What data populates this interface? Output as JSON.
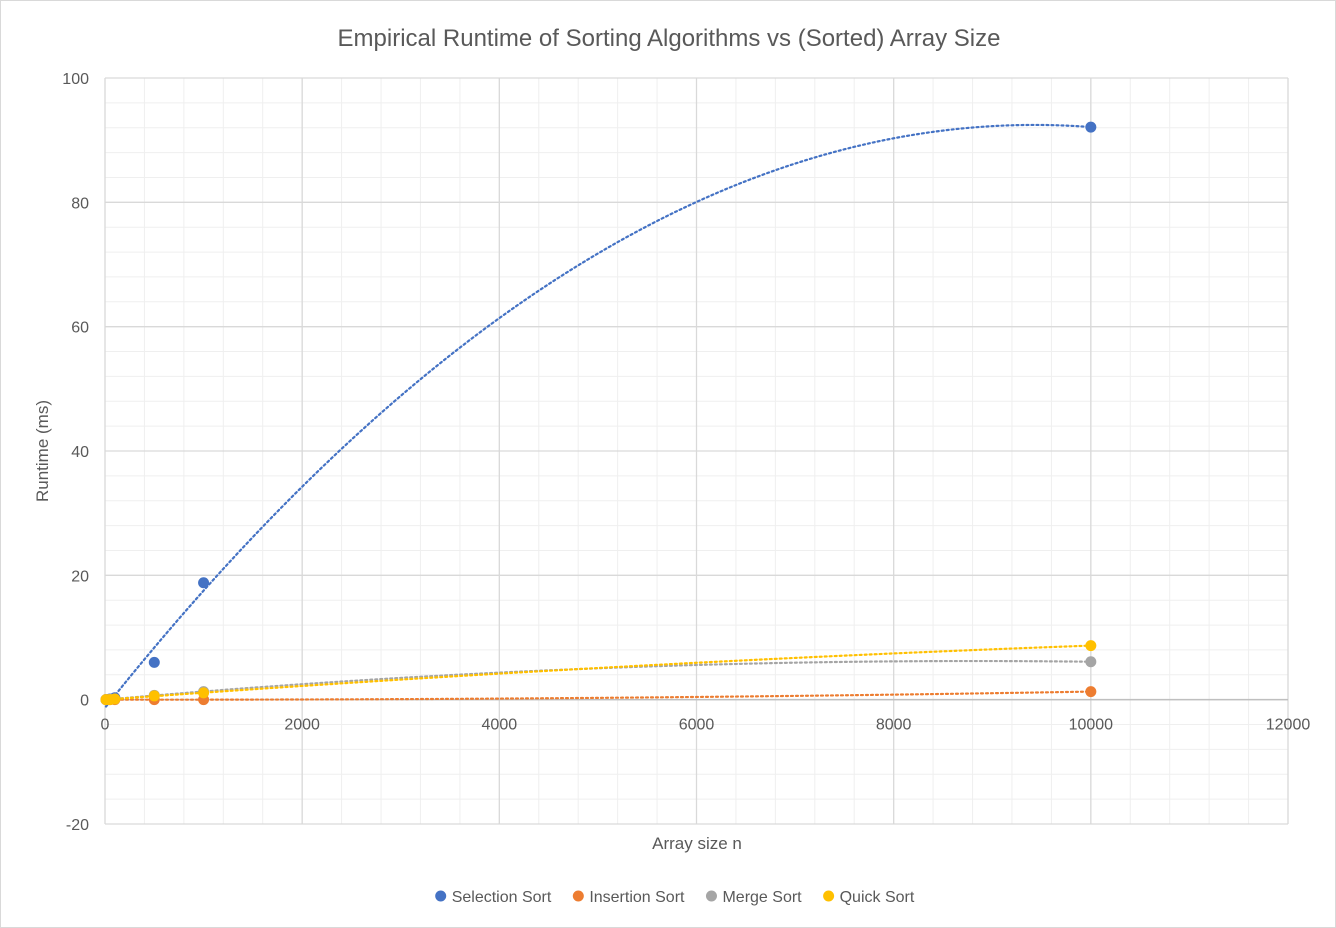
{
  "chart_data": {
    "type": "scatter",
    "title": "Empirical Runtime of Sorting Algorithms vs (Sorted) Array Size",
    "xlabel": "Array size n",
    "ylabel": "Runtime (ms)",
    "xlim": [
      0,
      12000
    ],
    "ylim": [
      -20,
      100
    ],
    "x_ticks": [
      0,
      2000,
      4000,
      6000,
      8000,
      10000,
      12000
    ],
    "y_ticks": [
      -20,
      0,
      20,
      40,
      60,
      80,
      100
    ],
    "x_tick_labels": [
      "0",
      "2000",
      "4000",
      "6000",
      "8000",
      "10000",
      "12000"
    ],
    "y_tick_labels": [
      "-20",
      "0",
      "20",
      "40",
      "60",
      "80",
      "100"
    ],
    "grid": "major and minor",
    "legend_position": "bottom",
    "trendline": "polynomial order 2 (dotted)",
    "series": [
      {
        "name": "Selection Sort",
        "color": "#4472C4",
        "x": [
          10,
          50,
          100,
          500,
          1000,
          10000
        ],
        "y": [
          0.0,
          0.1,
          0.3,
          6.0,
          18.8,
          92.1
        ]
      },
      {
        "name": "Insertion Sort",
        "color": "#ED7D31",
        "x": [
          10,
          50,
          100,
          500,
          1000,
          10000
        ],
        "y": [
          0.0,
          0.0,
          0.0,
          0.0,
          0.0,
          1.3
        ]
      },
      {
        "name": "Merge Sort",
        "color": "#A5A5A5",
        "x": [
          10,
          50,
          100,
          500,
          1000,
          10000
        ],
        "y": [
          0.0,
          0.05,
          0.1,
          0.7,
          1.3,
          6.1
        ]
      },
      {
        "name": "Quick Sort",
        "color": "#FFC000",
        "x": [
          10,
          50,
          100,
          500,
          1000,
          10000
        ],
        "y": [
          0.0,
          0.0,
          0.1,
          0.6,
          1.1,
          8.7
        ]
      }
    ]
  }
}
